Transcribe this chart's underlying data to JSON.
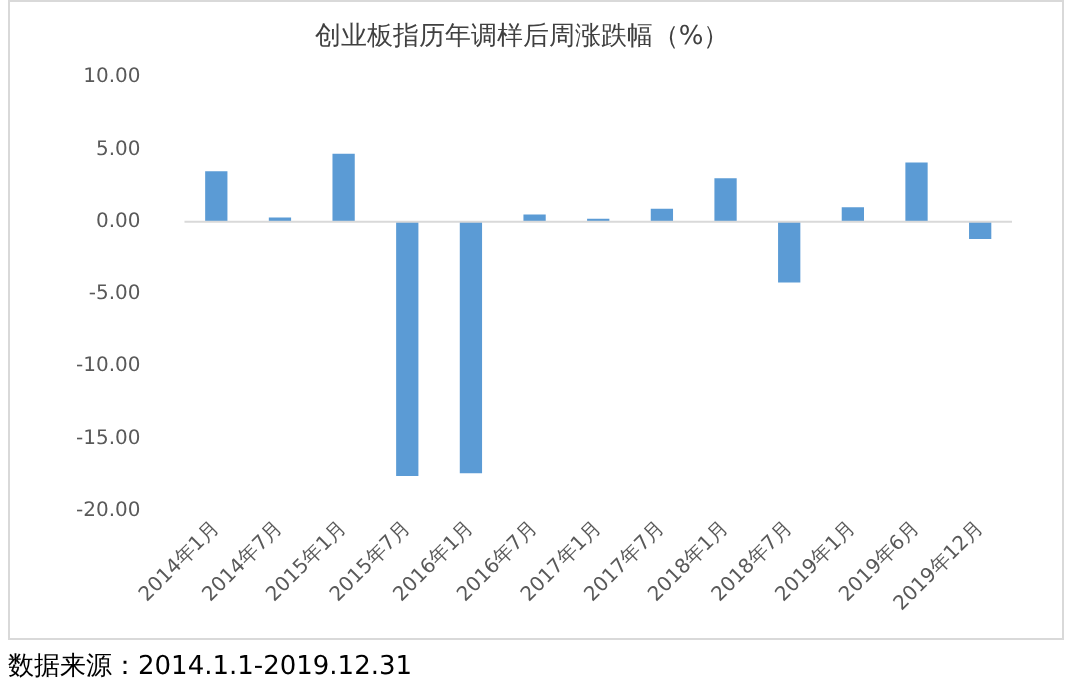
{
  "chart_data": {
    "type": "bar",
    "title": "创业板指历年调样后周涨跌幅（%）",
    "categories": [
      "2014年1月",
      "2014年7月",
      "2015年1月",
      "2015年7月",
      "2016年1月",
      "2016年7月",
      "2017年1月",
      "2017年7月",
      "2018年1月",
      "2018年7月",
      "2019年1月",
      "2019年6月",
      "2019年12月"
    ],
    "values": [
      3.5,
      0.3,
      4.7,
      -17.6,
      -17.4,
      0.5,
      0.2,
      0.9,
      3.0,
      -4.2,
      1.0,
      4.1,
      -1.2
    ],
    "color": "#5b9bd5",
    "ylim": [
      -20,
      10
    ],
    "yticks": [
      {
        "value": -20,
        "label": "-20.00"
      },
      {
        "value": -15,
        "label": "-15.00"
      },
      {
        "value": -10,
        "label": "-10.00"
      },
      {
        "value": -5,
        "label": "-5.00"
      },
      {
        "value": 0,
        "label": "0.00"
      },
      {
        "value": 5,
        "label": "5.00"
      },
      {
        "value": 10,
        "label": "10.00"
      }
    ],
    "legend": false,
    "annotations": [
      "数据来源：2014.1.1-2019.12.31"
    ]
  }
}
